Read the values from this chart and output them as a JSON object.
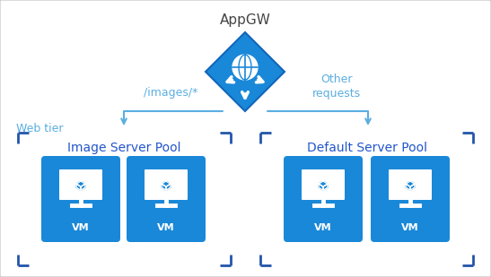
{
  "bg_color": "#ffffff",
  "azure_blue": "#1a88d8",
  "light_blue_text": "#5baee0",
  "arrow_color": "#5baee0",
  "bracket_color": "#2255aa",
  "pool_label_color": "#2255cc",
  "title": "AppGW",
  "label_images": "/images/*",
  "label_other": "Other\nrequests",
  "label_web": "Web tier",
  "label_pool1": "Image Server Pool",
  "label_pool2": "Default Server Pool",
  "label_vm": "VM",
  "figsize": [
    5.47,
    3.09
  ],
  "dpi": 100
}
